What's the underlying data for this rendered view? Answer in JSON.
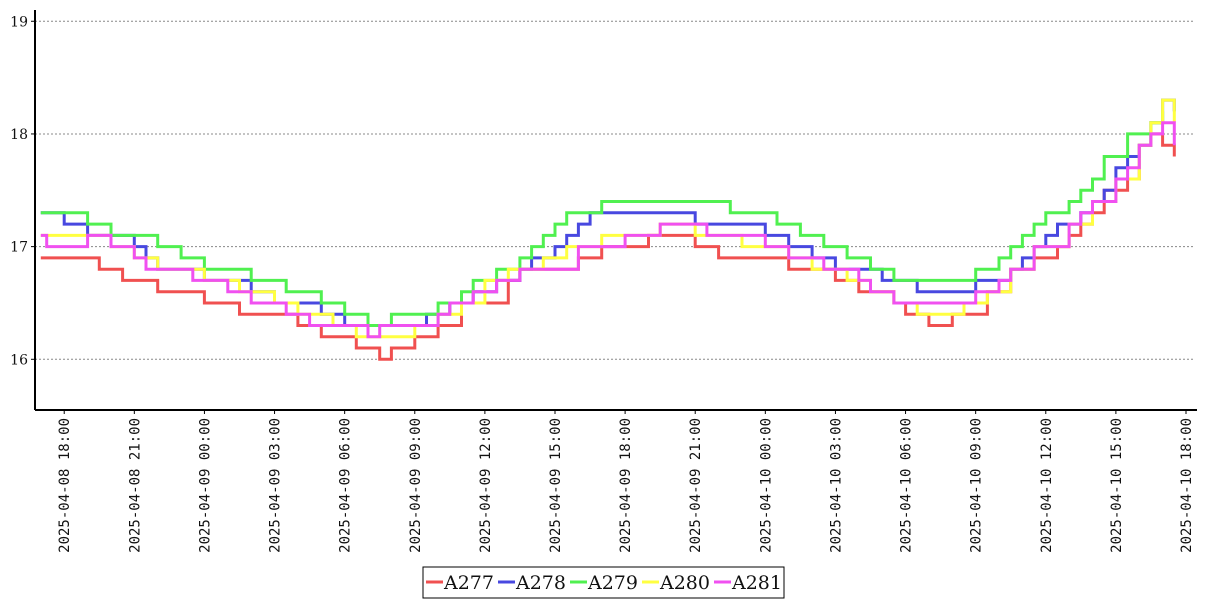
{
  "chart_data": {
    "type": "line",
    "step": true,
    "title": "",
    "xlabel": "",
    "ylabel": "",
    "x_type": "datetime",
    "xlim": [
      "2025-04-08 16:45",
      "2025-04-10 18:00"
    ],
    "ylim": [
      15.55,
      19.1
    ],
    "y_ticks": [
      16,
      17,
      18,
      19
    ],
    "x_ticks": [
      "2025-04-08 18:00",
      "2025-04-08 21:00",
      "2025-04-09 00:00",
      "2025-04-09 03:00",
      "2025-04-09 06:00",
      "2025-04-09 09:00",
      "2025-04-09 12:00",
      "2025-04-09 15:00",
      "2025-04-09 18:00",
      "2025-04-09 21:00",
      "2025-04-10 00:00",
      "2025-04-10 03:00",
      "2025-04-10 06:00",
      "2025-04-10 09:00",
      "2025-04-10 12:00",
      "2025-04-10 15:00",
      "2025-04-10 18:00"
    ],
    "grid": "horizontal-dotted",
    "legend_position": "bottom-center",
    "series": [
      {
        "name": "A277",
        "color": "#f05050",
        "points": [
          [
            "2025-04-08 17:00",
            16.9
          ],
          [
            "2025-04-08 18:30",
            16.9
          ],
          [
            "2025-04-08 19:30",
            16.8
          ],
          [
            "2025-04-08 20:30",
            16.7
          ],
          [
            "2025-04-08 22:00",
            16.6
          ],
          [
            "2025-04-09 00:00",
            16.5
          ],
          [
            "2025-04-09 01:30",
            16.4
          ],
          [
            "2025-04-09 04:00",
            16.3
          ],
          [
            "2025-04-09 05:00",
            16.2
          ],
          [
            "2025-04-09 06:30",
            16.1
          ],
          [
            "2025-04-09 07:30",
            16.0
          ],
          [
            "2025-04-09 08:00",
            16.1
          ],
          [
            "2025-04-09 09:00",
            16.2
          ],
          [
            "2025-04-09 10:00",
            16.3
          ],
          [
            "2025-04-09 11:00",
            16.5
          ],
          [
            "2025-04-09 13:00",
            16.7
          ],
          [
            "2025-04-09 13:30",
            16.8
          ],
          [
            "2025-04-09 16:00",
            16.9
          ],
          [
            "2025-04-09 17:00",
            17.0
          ],
          [
            "2025-04-09 19:00",
            17.1
          ],
          [
            "2025-04-09 21:00",
            17.0
          ],
          [
            "2025-04-09 22:00",
            16.9
          ],
          [
            "2025-04-09 23:30",
            16.9
          ],
          [
            "2025-04-10 01:00",
            16.8
          ],
          [
            "2025-04-10 03:00",
            16.7
          ],
          [
            "2025-04-10 04:00",
            16.6
          ],
          [
            "2025-04-10 05:30",
            16.5
          ],
          [
            "2025-04-10 06:00",
            16.4
          ],
          [
            "2025-04-10 07:00",
            16.3
          ],
          [
            "2025-04-10 08:00",
            16.4
          ],
          [
            "2025-04-10 09:30",
            16.6
          ],
          [
            "2025-04-10 10:30",
            16.8
          ],
          [
            "2025-04-10 11:30",
            16.9
          ],
          [
            "2025-04-10 12:30",
            17.0
          ],
          [
            "2025-04-10 13:00",
            17.1
          ],
          [
            "2025-04-10 13:30",
            17.2
          ],
          [
            "2025-04-10 14:00",
            17.3
          ],
          [
            "2025-04-10 14:30",
            17.5
          ],
          [
            "2025-04-10 15:30",
            17.6
          ],
          [
            "2025-04-10 16:00",
            17.9
          ],
          [
            "2025-04-10 16:30",
            18.0
          ],
          [
            "2025-04-10 17:00",
            17.9
          ],
          [
            "2025-04-10 17:30",
            17.8
          ]
        ]
      },
      {
        "name": "A278",
        "color": "#4848e0",
        "points": [
          [
            "2025-04-08 17:00",
            17.3
          ],
          [
            "2025-04-08 18:00",
            17.2
          ],
          [
            "2025-04-08 19:00",
            17.1
          ],
          [
            "2025-04-08 21:00",
            17.0
          ],
          [
            "2025-04-08 21:30",
            16.9
          ],
          [
            "2025-04-08 22:00",
            16.8
          ],
          [
            "2025-04-09 00:00",
            16.7
          ],
          [
            "2025-04-09 02:00",
            16.6
          ],
          [
            "2025-04-09 03:00",
            16.5
          ],
          [
            "2025-04-09 05:00",
            16.4
          ],
          [
            "2025-04-09 06:00",
            16.3
          ],
          [
            "2025-04-09 08:00",
            16.3
          ],
          [
            "2025-04-09 09:30",
            16.4
          ],
          [
            "2025-04-09 10:30",
            16.5
          ],
          [
            "2025-04-09 11:30",
            16.6
          ],
          [
            "2025-04-09 12:30",
            16.7
          ],
          [
            "2025-04-09 13:30",
            16.8
          ],
          [
            "2025-04-09 14:00",
            16.9
          ],
          [
            "2025-04-09 15:00",
            17.0
          ],
          [
            "2025-04-09 15:30",
            17.1
          ],
          [
            "2025-04-09 16:00",
            17.2
          ],
          [
            "2025-04-09 16:30",
            17.3
          ],
          [
            "2025-04-09 18:30",
            17.3
          ],
          [
            "2025-04-09 21:00",
            17.2
          ],
          [
            "2025-04-10 00:00",
            17.1
          ],
          [
            "2025-04-10 01:00",
            17.0
          ],
          [
            "2025-04-10 02:00",
            16.9
          ],
          [
            "2025-04-10 03:00",
            16.8
          ],
          [
            "2025-04-10 05:00",
            16.7
          ],
          [
            "2025-04-10 06:30",
            16.6
          ],
          [
            "2025-04-10 08:30",
            16.6
          ],
          [
            "2025-04-10 09:00",
            16.7
          ],
          [
            "2025-04-10 10:30",
            16.8
          ],
          [
            "2025-04-10 11:00",
            16.9
          ],
          [
            "2025-04-10 11:30",
            17.0
          ],
          [
            "2025-04-10 12:00",
            17.1
          ],
          [
            "2025-04-10 12:30",
            17.2
          ],
          [
            "2025-04-10 13:30",
            17.3
          ],
          [
            "2025-04-10 14:00",
            17.4
          ],
          [
            "2025-04-10 14:30",
            17.5
          ],
          [
            "2025-04-10 15:00",
            17.7
          ],
          [
            "2025-04-10 15:30",
            17.8
          ],
          [
            "2025-04-10 16:00",
            17.9
          ],
          [
            "2025-04-10 16:30",
            18.1
          ],
          [
            "2025-04-10 17:00",
            18.3
          ],
          [
            "2025-04-10 17:30",
            18.2
          ]
        ]
      },
      {
        "name": "A279",
        "color": "#50f050",
        "points": [
          [
            "2025-04-08 17:00",
            17.3
          ],
          [
            "2025-04-08 19:00",
            17.2
          ],
          [
            "2025-04-08 20:00",
            17.1
          ],
          [
            "2025-04-08 22:00",
            17.0
          ],
          [
            "2025-04-08 23:00",
            16.9
          ],
          [
            "2025-04-09 00:00",
            16.8
          ],
          [
            "2025-04-09 02:00",
            16.7
          ],
          [
            "2025-04-09 03:30",
            16.6
          ],
          [
            "2025-04-09 05:00",
            16.5
          ],
          [
            "2025-04-09 06:00",
            16.4
          ],
          [
            "2025-04-09 07:00",
            16.3
          ],
          [
            "2025-04-09 08:00",
            16.4
          ],
          [
            "2025-04-09 10:00",
            16.5
          ],
          [
            "2025-04-09 11:00",
            16.6
          ],
          [
            "2025-04-09 11:30",
            16.7
          ],
          [
            "2025-04-09 12:30",
            16.8
          ],
          [
            "2025-04-09 13:30",
            16.9
          ],
          [
            "2025-04-09 14:00",
            17.0
          ],
          [
            "2025-04-09 14:30",
            17.1
          ],
          [
            "2025-04-09 15:00",
            17.2
          ],
          [
            "2025-04-09 15:30",
            17.3
          ],
          [
            "2025-04-09 17:00",
            17.4
          ],
          [
            "2025-04-09 22:00",
            17.4
          ],
          [
            "2025-04-09 22:30",
            17.3
          ],
          [
            "2025-04-10 00:00",
            17.3
          ],
          [
            "2025-04-10 00:30",
            17.2
          ],
          [
            "2025-04-10 01:30",
            17.1
          ],
          [
            "2025-04-10 02:30",
            17.0
          ],
          [
            "2025-04-10 03:30",
            16.9
          ],
          [
            "2025-04-10 04:30",
            16.8
          ],
          [
            "2025-04-10 05:30",
            16.7
          ],
          [
            "2025-04-10 08:30",
            16.7
          ],
          [
            "2025-04-10 09:00",
            16.8
          ],
          [
            "2025-04-10 10:00",
            16.9
          ],
          [
            "2025-04-10 10:30",
            17.0
          ],
          [
            "2025-04-10 11:00",
            17.1
          ],
          [
            "2025-04-10 11:30",
            17.2
          ],
          [
            "2025-04-10 12:00",
            17.3
          ],
          [
            "2025-04-10 13:00",
            17.4
          ],
          [
            "2025-04-10 13:30",
            17.5
          ],
          [
            "2025-04-10 14:00",
            17.6
          ],
          [
            "2025-04-10 14:30",
            17.8
          ],
          [
            "2025-04-10 15:30",
            18.0
          ],
          [
            "2025-04-10 16:30",
            18.1
          ],
          [
            "2025-04-10 17:00",
            18.2
          ]
        ]
      },
      {
        "name": "A280",
        "color": "#ffff40",
        "points": [
          [
            "2025-04-08 17:00",
            17.1
          ],
          [
            "2025-04-08 18:30",
            17.1
          ],
          [
            "2025-04-08 20:00",
            17.0
          ],
          [
            "2025-04-08 21:00",
            16.9
          ],
          [
            "2025-04-08 22:00",
            16.8
          ],
          [
            "2025-04-09 00:00",
            16.7
          ],
          [
            "2025-04-09 01:30",
            16.6
          ],
          [
            "2025-04-09 03:00",
            16.5
          ],
          [
            "2025-04-09 04:00",
            16.4
          ],
          [
            "2025-04-09 05:30",
            16.3
          ],
          [
            "2025-04-09 06:30",
            16.2
          ],
          [
            "2025-04-09 08:00",
            16.2
          ],
          [
            "2025-04-09 09:00",
            16.3
          ],
          [
            "2025-04-09 10:00",
            16.4
          ],
          [
            "2025-04-09 11:00",
            16.5
          ],
          [
            "2025-04-09 12:00",
            16.7
          ],
          [
            "2025-04-09 13:00",
            16.8
          ],
          [
            "2025-04-09 14:30",
            16.9
          ],
          [
            "2025-04-09 15:30",
            17.0
          ],
          [
            "2025-04-09 17:00",
            17.1
          ],
          [
            "2025-04-09 19:30",
            17.2
          ],
          [
            "2025-04-09 21:00",
            17.1
          ],
          [
            "2025-04-09 23:00",
            17.0
          ],
          [
            "2025-04-10 01:00",
            16.9
          ],
          [
            "2025-04-10 02:00",
            16.8
          ],
          [
            "2025-04-10 03:30",
            16.7
          ],
          [
            "2025-04-10 04:30",
            16.6
          ],
          [
            "2025-04-10 05:30",
            16.5
          ],
          [
            "2025-04-10 06:30",
            16.4
          ],
          [
            "2025-04-10 08:30",
            16.5
          ],
          [
            "2025-04-10 09:30",
            16.6
          ],
          [
            "2025-04-10 10:30",
            16.8
          ],
          [
            "2025-04-10 11:30",
            17.0
          ],
          [
            "2025-04-10 13:00",
            17.2
          ],
          [
            "2025-04-10 14:00",
            17.4
          ],
          [
            "2025-04-10 15:00",
            17.6
          ],
          [
            "2025-04-10 16:00",
            17.9
          ],
          [
            "2025-04-10 16:30",
            18.1
          ],
          [
            "2025-04-10 17:00",
            18.3
          ],
          [
            "2025-04-10 17:30",
            18.1
          ]
        ]
      },
      {
        "name": "A281",
        "color": "#f050f0",
        "points": [
          [
            "2025-04-08 17:00",
            17.1
          ],
          [
            "2025-04-08 17:15",
            17.0
          ],
          [
            "2025-04-08 18:30",
            17.0
          ],
          [
            "2025-04-08 19:00",
            17.1
          ],
          [
            "2025-04-08 20:00",
            17.0
          ],
          [
            "2025-04-08 21:00",
            16.9
          ],
          [
            "2025-04-08 21:30",
            16.8
          ],
          [
            "2025-04-08 23:30",
            16.7
          ],
          [
            "2025-04-09 01:00",
            16.6
          ],
          [
            "2025-04-09 02:00",
            16.5
          ],
          [
            "2025-04-09 03:30",
            16.4
          ],
          [
            "2025-04-09 04:30",
            16.3
          ],
          [
            "2025-04-09 07:00",
            16.2
          ],
          [
            "2025-04-09 07:30",
            16.3
          ],
          [
            "2025-04-09 09:00",
            16.3
          ],
          [
            "2025-04-09 10:00",
            16.4
          ],
          [
            "2025-04-09 10:30",
            16.5
          ],
          [
            "2025-04-09 11:30",
            16.6
          ],
          [
            "2025-04-09 12:30",
            16.7
          ],
          [
            "2025-04-09 13:30",
            16.8
          ],
          [
            "2025-04-09 16:00",
            17.0
          ],
          [
            "2025-04-09 18:00",
            17.1
          ],
          [
            "2025-04-09 19:30",
            17.2
          ],
          [
            "2025-04-09 21:30",
            17.1
          ],
          [
            "2025-04-10 00:00",
            17.0
          ],
          [
            "2025-04-10 01:00",
            16.9
          ],
          [
            "2025-04-10 02:30",
            16.8
          ],
          [
            "2025-04-10 04:00",
            16.7
          ],
          [
            "2025-04-10 04:30",
            16.6
          ],
          [
            "2025-04-10 05:30",
            16.5
          ],
          [
            "2025-04-10 08:00",
            16.5
          ],
          [
            "2025-04-10 09:00",
            16.6
          ],
          [
            "2025-04-10 10:00",
            16.7
          ],
          [
            "2025-04-10 10:30",
            16.8
          ],
          [
            "2025-04-10 11:30",
            17.0
          ],
          [
            "2025-04-10 13:00",
            17.2
          ],
          [
            "2025-04-10 13:30",
            17.3
          ],
          [
            "2025-04-10 14:00",
            17.4
          ],
          [
            "2025-04-10 15:00",
            17.6
          ],
          [
            "2025-04-10 15:30",
            17.7
          ],
          [
            "2025-04-10 16:00",
            17.9
          ],
          [
            "2025-04-10 16:30",
            18.0
          ],
          [
            "2025-04-10 17:00",
            18.1
          ],
          [
            "2025-04-10 17:30",
            17.9
          ]
        ]
      }
    ]
  }
}
